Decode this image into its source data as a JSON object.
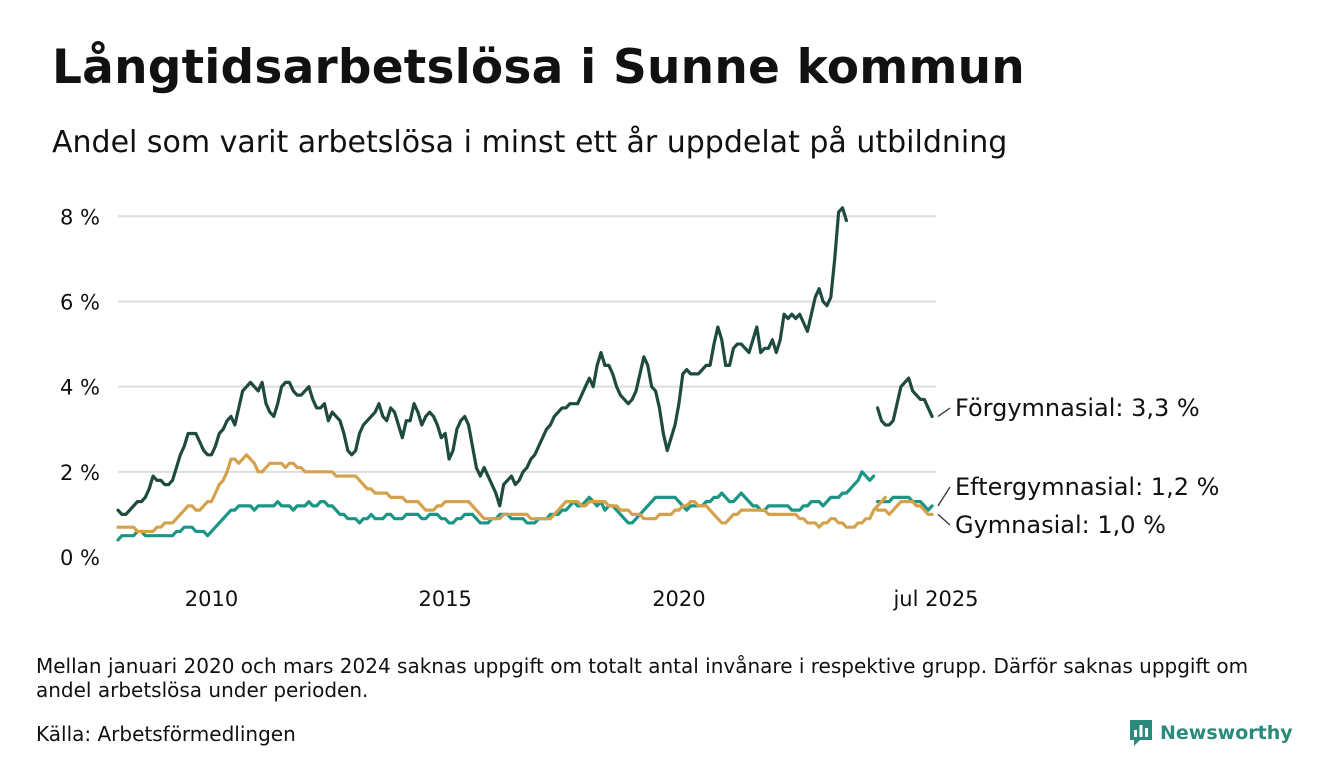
{
  "title": "Långtidsarbetslösa i Sunne kommun",
  "subtitle": "Andel som varit arbetslösa i minst ett år uppdelat på utbildning",
  "note": "Mellan januari 2020 och mars 2024 saknas uppgift om totalt antal invånare i respektive grupp. Därför saknas uppgift om andel arbetslösa under perioden.",
  "source": "Källa: Arbetsförmedlingen",
  "brand": {
    "name": "Newsworthy",
    "logo_icon": "newsworthy-logo-icon"
  },
  "colors": {
    "forgymnasial": "#1f4a40",
    "eftergymnasial": "#1a9686",
    "gymnasial": "#d4a24c",
    "grid": "#dddddd",
    "brand": "#2a8a7c"
  },
  "chart_data": {
    "type": "line",
    "title": "Långtidsarbetslösa i Sunne kommun",
    "subtitle": "Andel som varit arbetslösa i minst ett år uppdelat på utbildning",
    "xlabel": "",
    "ylabel": "",
    "ylim": [
      0,
      8.5
    ],
    "y_ticks": [
      0,
      2,
      4,
      6,
      8
    ],
    "y_tick_labels": [
      "0 %",
      "2 %",
      "4 %",
      "6 %",
      "8 %"
    ],
    "x_ticks": [
      "2010",
      "2015",
      "2020",
      "jul 2025"
    ],
    "x_tick_dates": [
      "2010-01",
      "2015-01",
      "2020-01",
      "2025-07"
    ],
    "x_range": [
      "2008-01",
      "2025-07"
    ],
    "grid": true,
    "legend": "end-of-line labels",
    "series": [
      {
        "name": "Förgymnasial",
        "end_label": "Förgymnasial: 3,3 %",
        "color_key": "forgymnasial",
        "segments": [
          {
            "start": "2008-01",
            "values": [
              1.1,
              1.0,
              1.0,
              1.1,
              1.2,
              1.3,
              1.3,
              1.4,
              1.6,
              1.9,
              1.8,
              1.8,
              1.7,
              1.7,
              1.8,
              2.1,
              2.4,
              2.6,
              2.9,
              2.9,
              2.9,
              2.7,
              2.5,
              2.4,
              2.4,
              2.6,
              2.9,
              3.0,
              3.2,
              3.3,
              3.1,
              3.5,
              3.9,
              4.0,
              4.1,
              4.0,
              3.9,
              4.1,
              3.6,
              3.4,
              3.3,
              3.6,
              4.0,
              4.1,
              4.1,
              3.9,
              3.8,
              3.8,
              3.9,
              4.0,
              3.7,
              3.5,
              3.5,
              3.6,
              3.2,
              3.4,
              3.3,
              3.2,
              2.9,
              2.5,
              2.4,
              2.5,
              2.9,
              3.1,
              3.2,
              3.3,
              3.4,
              3.6,
              3.3,
              3.2,
              3.5,
              3.4,
              3.1,
              2.8,
              3.2,
              3.2,
              3.6,
              3.4,
              3.1,
              3.3,
              3.4,
              3.3,
              3.1,
              2.8,
              2.9,
              2.3,
              2.5,
              3.0,
              3.2,
              3.3,
              3.1,
              2.6,
              2.1,
              1.9,
              2.1,
              1.9,
              1.7,
              1.5,
              1.2,
              1.7,
              1.8,
              1.9,
              1.7,
              1.8,
              2.0,
              2.1,
              2.3,
              2.4,
              2.6,
              2.8,
              3.0,
              3.1,
              3.3,
              3.4,
              3.5,
              3.5,
              3.6,
              3.6,
              3.6,
              3.8,
              4.0,
              4.2,
              4.0,
              4.5,
              4.8,
              4.5,
              4.5,
              4.3,
              4.0,
              3.8,
              3.7,
              3.6,
              3.7,
              3.9,
              4.3,
              4.7,
              4.5,
              4.0,
              3.9,
              3.5,
              2.9,
              2.5,
              2.8,
              3.1,
              3.6,
              4.3,
              4.4,
              4.3,
              4.3,
              4.3,
              4.4,
              4.5,
              4.5,
              5.0,
              5.4,
              5.1,
              4.5,
              4.5,
              4.9,
              5.0,
              5.0,
              4.9,
              4.8,
              5.1,
              5.4,
              4.8,
              4.9,
              4.9,
              5.1,
              4.8,
              5.1,
              5.7,
              5.6,
              5.7,
              5.6,
              5.7,
              5.5,
              5.3,
              5.7,
              6.1,
              6.3,
              6.0,
              5.9,
              6.1,
              7.0,
              8.1,
              8.2,
              7.9
            ]
          },
          {
            "start": "2024-04",
            "values": [
              3.5,
              3.2,
              3.1,
              3.1,
              3.2,
              3.6,
              4.0,
              4.1,
              4.2,
              3.9,
              3.8,
              3.7,
              3.7,
              3.5,
              3.3
            ]
          }
        ]
      },
      {
        "name": "Eftergymnasial",
        "end_label": "Eftergymnasial: 1,2 %",
        "color_key": "eftergymnasial",
        "segments": [
          {
            "start": "2008-01",
            "values": [
              0.4,
              0.5,
              0.5,
              0.5,
              0.5,
              0.6,
              0.6,
              0.5,
              0.5,
              0.5,
              0.5,
              0.5,
              0.5,
              0.5,
              0.5,
              0.6,
              0.6,
              0.7,
              0.7,
              0.7,
              0.6,
              0.6,
              0.6,
              0.5,
              0.6,
              0.7,
              0.8,
              0.9,
              1.0,
              1.1,
              1.1,
              1.2,
              1.2,
              1.2,
              1.2,
              1.1,
              1.2,
              1.2,
              1.2,
              1.2,
              1.2,
              1.3,
              1.2,
              1.2,
              1.2,
              1.1,
              1.2,
              1.2,
              1.2,
              1.3,
              1.2,
              1.2,
              1.3,
              1.3,
              1.2,
              1.2,
              1.1,
              1.0,
              1.0,
              0.9,
              0.9,
              0.9,
              0.8,
              0.9,
              0.9,
              1.0,
              0.9,
              0.9,
              0.9,
              1.0,
              1.0,
              0.9,
              0.9,
              0.9,
              1.0,
              1.0,
              1.0,
              1.0,
              0.9,
              0.9,
              1.0,
              1.0,
              1.0,
              0.9,
              0.9,
              0.8,
              0.8,
              0.9,
              0.9,
              1.0,
              1.0,
              1.0,
              0.9,
              0.8,
              0.8,
              0.8,
              0.9,
              0.9,
              1.0,
              1.0,
              1.0,
              0.9,
              0.9,
              0.9,
              0.9,
              0.8,
              0.8,
              0.8,
              0.9,
              0.9,
              0.9,
              1.0,
              1.0,
              1.0,
              1.1,
              1.1,
              1.2,
              1.3,
              1.2,
              1.2,
              1.3,
              1.4,
              1.3,
              1.2,
              1.3,
              1.1,
              1.2,
              1.2,
              1.1,
              1.0,
              0.9,
              0.8,
              0.8,
              0.9,
              1.0,
              1.1,
              1.2,
              1.3,
              1.4,
              1.4,
              1.4,
              1.4,
              1.4,
              1.4,
              1.3,
              1.2,
              1.1,
              1.2,
              1.2,
              1.2,
              1.2,
              1.3,
              1.3,
              1.4,
              1.4,
              1.5,
              1.4,
              1.3,
              1.3,
              1.4,
              1.5,
              1.4,
              1.3,
              1.2,
              1.2,
              1.1,
              1.1,
              1.2,
              1.2,
              1.2,
              1.2,
              1.2,
              1.2,
              1.1,
              1.1,
              1.1,
              1.2,
              1.2,
              1.3,
              1.3,
              1.3,
              1.2,
              1.3,
              1.4,
              1.4,
              1.4,
              1.5,
              1.5,
              1.6,
              1.7,
              1.8,
              2.0,
              1.9,
              1.8,
              1.9
            ]
          },
          {
            "start": "2024-04",
            "values": [
              1.3,
              1.3,
              1.3,
              1.3,
              1.4,
              1.4,
              1.4,
              1.4,
              1.4,
              1.3,
              1.3,
              1.3,
              1.2,
              1.1,
              1.2
            ]
          }
        ]
      },
      {
        "name": "Gymnasial",
        "end_label": "Gymnasial: 1,0 %",
        "color_key": "gymnasial",
        "segments": [
          {
            "start": "2008-01",
            "values": [
              0.7,
              0.7,
              0.7,
              0.7,
              0.7,
              0.6,
              0.6,
              0.6,
              0.6,
              0.6,
              0.7,
              0.7,
              0.8,
              0.8,
              0.8,
              0.9,
              1.0,
              1.1,
              1.2,
              1.2,
              1.1,
              1.1,
              1.2,
              1.3,
              1.3,
              1.5,
              1.7,
              1.8,
              2.0,
              2.3,
              2.3,
              2.2,
              2.3,
              2.4,
              2.3,
              2.2,
              2.0,
              2.0,
              2.1,
              2.2,
              2.2,
              2.2,
              2.2,
              2.1,
              2.2,
              2.2,
              2.1,
              2.1,
              2.0,
              2.0,
              2.0,
              2.0,
              2.0,
              2.0,
              2.0,
              2.0,
              1.9,
              1.9,
              1.9,
              1.9,
              1.9,
              1.9,
              1.8,
              1.7,
              1.6,
              1.6,
              1.5,
              1.5,
              1.5,
              1.5,
              1.4,
              1.4,
              1.4,
              1.4,
              1.3,
              1.3,
              1.3,
              1.3,
              1.2,
              1.1,
              1.1,
              1.1,
              1.2,
              1.2,
              1.3,
              1.3,
              1.3,
              1.3,
              1.3,
              1.3,
              1.3,
              1.2,
              1.1,
              1.0,
              0.9,
              0.9,
              0.9,
              0.9,
              0.9,
              1.0,
              1.0,
              1.0,
              1.0,
              1.0,
              1.0,
              1.0,
              0.9,
              0.9,
              0.9,
              0.9,
              0.9,
              0.9,
              1.0,
              1.1,
              1.2,
              1.3,
              1.3,
              1.3,
              1.3,
              1.2,
              1.2,
              1.3,
              1.3,
              1.3,
              1.3,
              1.3,
              1.2,
              1.2,
              1.2,
              1.1,
              1.1,
              1.1,
              1.0,
              1.0,
              1.0,
              0.9,
              0.9,
              0.9,
              0.9,
              1.0,
              1.0,
              1.0,
              1.0,
              1.1,
              1.1,
              1.2,
              1.2,
              1.3,
              1.3,
              1.2,
              1.2,
              1.2,
              1.1,
              1.0,
              0.9,
              0.8,
              0.8,
              0.9,
              1.0,
              1.0,
              1.1,
              1.1,
              1.1,
              1.1,
              1.1,
              1.1,
              1.1,
              1.0,
              1.0,
              1.0,
              1.0,
              1.0,
              1.0,
              1.0,
              1.0,
              0.9,
              0.9,
              0.8,
              0.8,
              0.8,
              0.7,
              0.8,
              0.8,
              0.9,
              0.9,
              0.8,
              0.8,
              0.7,
              0.7,
              0.7,
              0.8,
              0.8,
              0.9,
              0.9,
              1.1,
              1.2,
              1.3,
              1.4
            ]
          },
          {
            "start": "2024-04",
            "values": [
              1.1,
              1.1,
              1.1,
              1.0,
              1.1,
              1.2,
              1.3,
              1.3,
              1.3,
              1.3,
              1.2,
              1.2,
              1.1,
              1.0,
              1.0
            ]
          }
        ]
      }
    ]
  }
}
